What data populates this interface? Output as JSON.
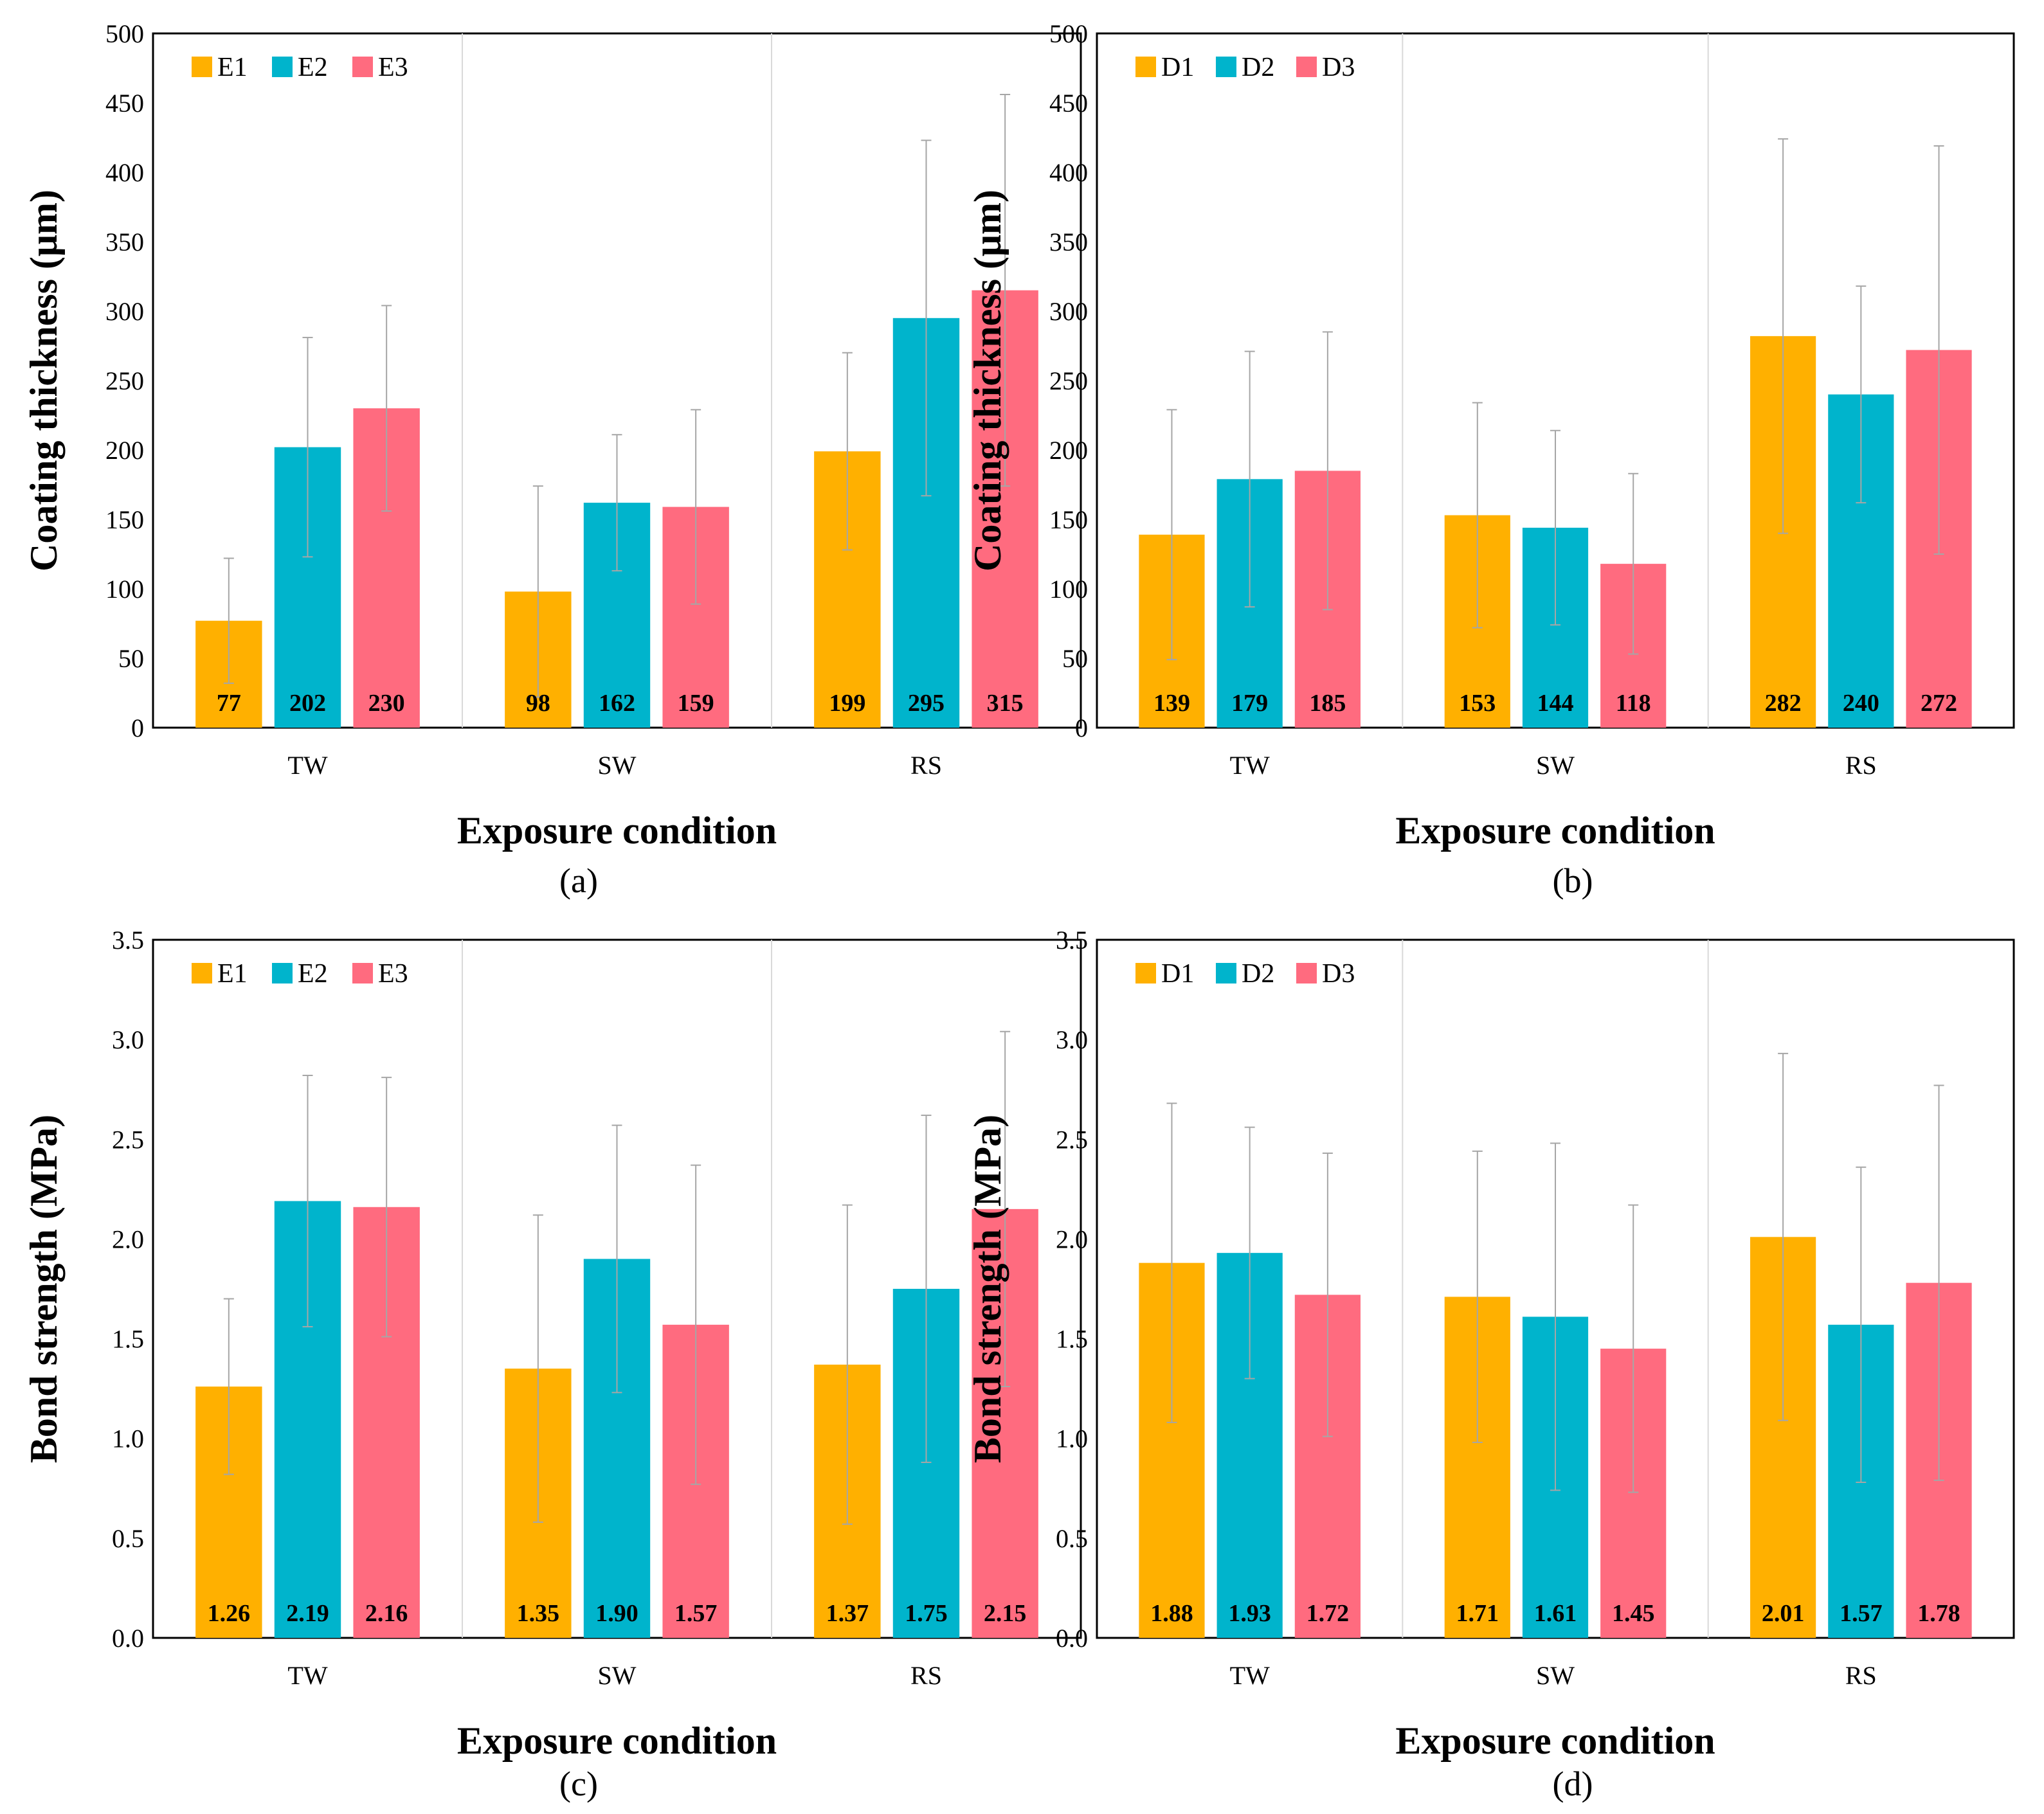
{
  "charts": [
    {
      "type": "bar",
      "caption": "(a)",
      "ylabel": "Coating thickness (μm)",
      "xlabel": "Exposure condition",
      "categories": [
        "TW",
        "SW",
        "RS"
      ],
      "ylim": [
        0,
        500
      ],
      "yticks": [
        "0",
        "50",
        "100",
        "150",
        "200",
        "250",
        "300",
        "350",
        "400",
        "450",
        "500"
      ],
      "legend_position": "top-left",
      "series": [
        {
          "name": "E1",
          "color": "#FFB000",
          "values": [
            77,
            98,
            199
          ],
          "labels": [
            "77",
            "98",
            "199"
          ],
          "err": [
            45,
            76,
            71
          ]
        },
        {
          "name": "E2",
          "color": "#00B4CC",
          "values": [
            202,
            162,
            295
          ],
          "labels": [
            "202",
            "162",
            "295"
          ],
          "err": [
            79,
            49,
            128
          ]
        },
        {
          "name": "E3",
          "color": "#FF6B7F",
          "values": [
            230,
            159,
            315
          ],
          "labels": [
            "230",
            "159",
            "315"
          ],
          "err": [
            74,
            70,
            141
          ]
        }
      ]
    },
    {
      "type": "bar",
      "caption": "(b)",
      "ylabel": "Coating thickness (μm)",
      "xlabel": "Exposure condition",
      "categories": [
        "TW",
        "SW",
        "RS"
      ],
      "ylim": [
        0,
        500
      ],
      "yticks": [
        "0",
        "50",
        "100",
        "150",
        "200",
        "250",
        "300",
        "350",
        "400",
        "450",
        "500"
      ],
      "legend_position": "top-left",
      "series": [
        {
          "name": "D1",
          "color": "#FFB000",
          "values": [
            139,
            153,
            282
          ],
          "labels": [
            "139",
            "153",
            "282"
          ],
          "err": [
            90,
            81,
            142
          ]
        },
        {
          "name": "D2",
          "color": "#00B4CC",
          "values": [
            179,
            144,
            240
          ],
          "labels": [
            "179",
            "144",
            "240"
          ],
          "err": [
            92,
            70,
            78
          ]
        },
        {
          "name": "D3",
          "color": "#FF6B7F",
          "values": [
            185,
            118,
            272
          ],
          "labels": [
            "185",
            "118",
            "272"
          ],
          "err": [
            100,
            65,
            147
          ]
        }
      ]
    },
    {
      "type": "bar",
      "caption": "(c)",
      "ylabel": "Bond strength (MPa)",
      "xlabel": "Exposure condition",
      "categories": [
        "TW",
        "SW",
        "RS"
      ],
      "ylim": [
        0,
        3.5
      ],
      "yticks": [
        "0.0",
        "0.5",
        "1.0",
        "1.5",
        "2.0",
        "2.5",
        "3.0",
        "3.5"
      ],
      "legend_position": "top-left",
      "series": [
        {
          "name": "E1",
          "color": "#FFB000",
          "values": [
            1.26,
            1.35,
            1.37
          ],
          "labels": [
            "1.26",
            "1.35",
            "1.37"
          ],
          "err": [
            0.44,
            0.77,
            0.8
          ]
        },
        {
          "name": "E2",
          "color": "#00B4CC",
          "values": [
            2.19,
            1.9,
            1.75
          ],
          "labels": [
            "2.19",
            "1.90",
            "1.75"
          ],
          "err": [
            0.63,
            0.67,
            0.87
          ]
        },
        {
          "name": "E3",
          "color": "#FF6B7F",
          "values": [
            2.16,
            1.57,
            2.15
          ],
          "labels": [
            "2.16",
            "1.57",
            "2.15"
          ],
          "err": [
            0.65,
            0.8,
            0.89
          ]
        }
      ]
    },
    {
      "type": "bar",
      "caption": "(d)",
      "ylabel": "Bond strength (MPa)",
      "xlabel": "Exposure condition",
      "categories": [
        "TW",
        "SW",
        "RS"
      ],
      "ylim": [
        0,
        3.5
      ],
      "yticks": [
        "0.0",
        "0.5",
        "1.0",
        "1.5",
        "2.0",
        "2.5",
        "3.0",
        "3.5"
      ],
      "legend_position": "top-left",
      "series": [
        {
          "name": "D1",
          "color": "#FFB000",
          "values": [
            1.88,
            1.71,
            2.01
          ],
          "labels": [
            "1.88",
            "1.71",
            "2.01"
          ],
          "err": [
            0.8,
            0.73,
            0.92
          ]
        },
        {
          "name": "D2",
          "color": "#00B4CC",
          "values": [
            1.93,
            1.61,
            1.57
          ],
          "labels": [
            "1.93",
            "1.61",
            "1.57"
          ],
          "err": [
            0.63,
            0.87,
            0.79
          ]
        },
        {
          "name": "D3",
          "color": "#FF6B7F",
          "values": [
            1.72,
            1.45,
            1.78
          ],
          "labels": [
            "1.72",
            "1.45",
            "1.78"
          ],
          "err": [
            0.71,
            0.72,
            0.99
          ]
        }
      ]
    }
  ]
}
